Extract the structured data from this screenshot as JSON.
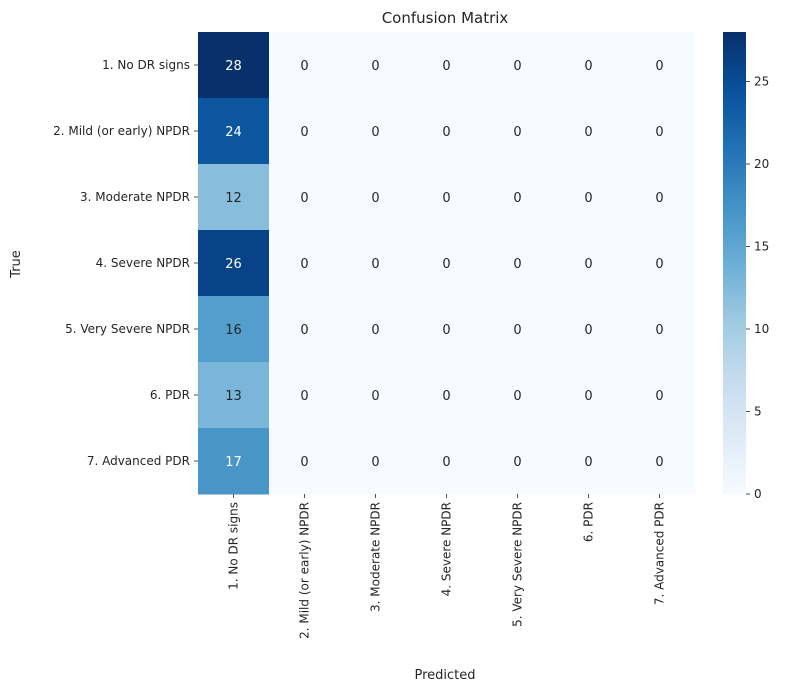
{
  "chart_data": {
    "type": "heatmap",
    "title": "Confusion Matrix",
    "xlabel": "Predicted",
    "ylabel": "True",
    "x_categories": [
      "1. No DR signs",
      "2. Mild (or early) NPDR",
      "3. Moderate NPDR",
      "4. Severe NPDR",
      "5. Very Severe NPDR",
      "6. PDR",
      "7. Advanced PDR"
    ],
    "y_categories": [
      "1. No DR signs",
      "2. Mild (or early) NPDR",
      "3. Moderate NPDR",
      "4. Severe NPDR",
      "5. Very Severe NPDR",
      "6. PDR",
      "7. Advanced PDR"
    ],
    "values": [
      [
        28,
        0,
        0,
        0,
        0,
        0,
        0
      ],
      [
        24,
        0,
        0,
        0,
        0,
        0,
        0
      ],
      [
        12,
        0,
        0,
        0,
        0,
        0,
        0
      ],
      [
        26,
        0,
        0,
        0,
        0,
        0,
        0
      ],
      [
        16,
        0,
        0,
        0,
        0,
        0,
        0
      ],
      [
        13,
        0,
        0,
        0,
        0,
        0,
        0
      ],
      [
        17,
        0,
        0,
        0,
        0,
        0,
        0
      ]
    ],
    "colormap": "Blues",
    "vmin": 0,
    "vmax": 28,
    "colorbar_ticks": [
      0,
      5,
      10,
      15,
      20,
      25
    ],
    "colorbar_tick_labels": [
      "0",
      "5",
      "10",
      "15",
      "20",
      "25"
    ],
    "annotate": true
  }
}
